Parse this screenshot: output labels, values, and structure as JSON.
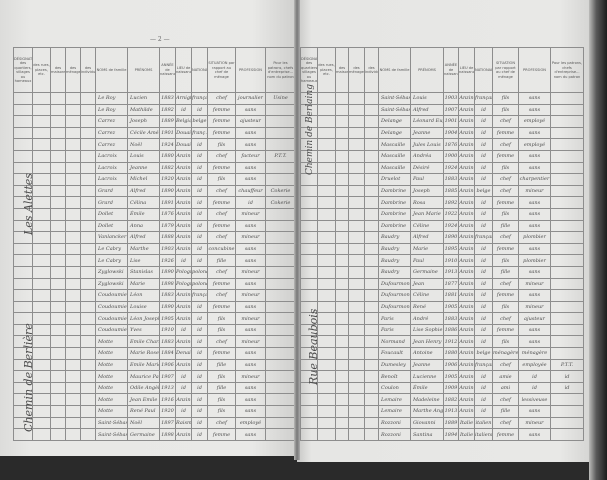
{
  "left_page": {
    "page_number": "— 2 —",
    "street_labels": [
      "Les Alettes",
      "Chemin de Berlière"
    ],
    "headers": [
      "DÉSIGNATION des quartiers, villages ou hameaux",
      "des rues, places, etc.",
      "des maisons",
      "des ménages",
      "des individus",
      "NOMS de famille",
      "PRÉNOMS",
      "ANNÉE de naissance",
      "LIEU de naissance",
      "NATIONALITÉ",
      "SITUATION par rapport au chef de ménage",
      "PROFESSION",
      "Pour les patrons, chefs d'entreprise... nom du patron"
    ],
    "rows": [
      [
        "Le Roy",
        "Lucien",
        "1883",
        "Arnigt",
        "français",
        "chef",
        "journalier",
        "Usine"
      ],
      [
        "Le Roy",
        "Mathilde",
        "1892",
        "id",
        "id",
        "femme",
        "sans",
        ""
      ],
      [
        "Carrez",
        "Joseph",
        "1889",
        "Belgique",
        "belge",
        "femme",
        "ajusteur",
        ""
      ],
      [
        "Carrez",
        "Cécile Amélie",
        "1901",
        "Douai",
        "franç.",
        "femme",
        "sans",
        ""
      ],
      [
        "Carrez",
        "Noël",
        "1924",
        "Douai",
        "id",
        "fils",
        "sans",
        ""
      ],
      [
        "Lacroix",
        "Louis",
        "1880",
        "Anzin",
        "id",
        "chef",
        "facteur",
        "P.T.T."
      ],
      [
        "Lacroix",
        "Jeanne",
        "1882",
        "Anzin",
        "id",
        "femme",
        "sans",
        ""
      ],
      [
        "Lacroix",
        "Michel",
        "1920",
        "Anzin",
        "id",
        "fils",
        "sans",
        ""
      ],
      [
        "Grard",
        "Alfred",
        "1890",
        "Anzin",
        "id",
        "chef",
        "chauffeur",
        "Cokerie"
      ],
      [
        "Grard",
        "Célina",
        "1891",
        "Anzin",
        "id",
        "femme",
        "id",
        "Cokerie"
      ],
      [
        "Dollet",
        "Émile",
        "1876",
        "Anzin",
        "id",
        "chef",
        "mineur",
        ""
      ],
      [
        "Dollet",
        "Anna",
        "1879",
        "Anzin",
        "id",
        "femme",
        "sans",
        ""
      ],
      [
        "Vanlancker",
        "Alfred",
        "1888",
        "Anzin",
        "id",
        "chef",
        "mineur",
        ""
      ],
      [
        "Le Cabry",
        "Marthe",
        "1903",
        "Anzin",
        "id",
        "concubine",
        "sans",
        ""
      ],
      [
        "Le Cabry",
        "Lise",
        "1926",
        "id",
        "id",
        "fille",
        "sans",
        ""
      ],
      [
        "Zyglowski",
        "Stanislas",
        "1890",
        "Pologne",
        "polonais",
        "chef",
        "mineur",
        ""
      ],
      [
        "Zyglowski",
        "Marie",
        "1898",
        "Pologne",
        "polonaise",
        "femme",
        "sans",
        ""
      ],
      [
        "Coudoumier",
        "Léon",
        "1883",
        "Anzin",
        "français",
        "chef",
        "mineur",
        ""
      ],
      [
        "Coudoumier",
        "Louise",
        "1890",
        "Anzin",
        "id",
        "femme",
        "sans",
        ""
      ],
      [
        "Coudoumier",
        "Léon Joseph",
        "1905",
        "Anzin",
        "id",
        "fils",
        "mineur",
        ""
      ],
      [
        "Coudoumier",
        "Yves",
        "1910",
        "id",
        "id",
        "fils",
        "sans",
        ""
      ],
      [
        "Motte",
        "Emile Charles",
        "1883",
        "Anzin",
        "id",
        "chef",
        "mineur",
        ""
      ],
      [
        "Motte",
        "Marie Rose",
        "1884",
        "Denain",
        "id",
        "femme",
        "sans",
        ""
      ],
      [
        "Motte",
        "Emile Marie",
        "1906",
        "Anzin",
        "id",
        "fille",
        "sans",
        ""
      ],
      [
        "Motte",
        "Maurice Paul",
        "1907",
        "id",
        "id",
        "fils",
        "mineur",
        ""
      ],
      [
        "Motte",
        "Odile Angèle",
        "1913",
        "id",
        "id",
        "fille",
        "sans",
        ""
      ],
      [
        "Motte",
        "Jean Emile",
        "1916",
        "Anzin",
        "id",
        "fils",
        "sans",
        ""
      ],
      [
        "Motte",
        "René Paul",
        "1920",
        "id",
        "id",
        "fils",
        "sans",
        ""
      ],
      [
        "Saint-Sébastien",
        "Noël",
        "1897",
        "Raismes",
        "id",
        "chef",
        "employé",
        ""
      ],
      [
        "Saint-Sébastien",
        "Germaine",
        "1898",
        "Anzin",
        "id",
        "femme",
        "sans",
        ""
      ]
    ]
  },
  "right_page": {
    "street_labels": [
      "Chemin de Berlaing",
      "Rue Beaubois"
    ],
    "headers": [
      "DÉSIGNATION des quartiers, villages ou hameaux",
      "des rues, places, etc.",
      "des maisons",
      "des ménages",
      "des individus",
      "NOMS de famille",
      "PRÉNOMS",
      "ANNÉE de naissance",
      "LIEU de naissance",
      "NATIONALITÉ",
      "SITUATION par rapport au chef de ménage",
      "PROFESSION",
      "Pour les patrons, chefs d'entreprise... nom du patron"
    ],
    "rows": [
      [
        "Saint-Sébastien",
        "Louis",
        "1903",
        "Anzin",
        "français",
        "fils",
        "sans",
        ""
      ],
      [
        "Saint-Sébastien",
        "Alfred",
        "1907",
        "Anzin",
        "id",
        "fils",
        "sans",
        ""
      ],
      [
        "Delange",
        "Léonard Eugène",
        "1901",
        "Anzin",
        "id",
        "chef",
        "employé",
        ""
      ],
      [
        "Delange",
        "Jeanne",
        "1904",
        "Anzin",
        "id",
        "femme",
        "sans",
        ""
      ],
      [
        "Mascaille",
        "Jules Louis",
        "1876",
        "Anzin",
        "id",
        "chef",
        "employé",
        ""
      ],
      [
        "Mascaille",
        "Andréa",
        "1900",
        "Anzin",
        "id",
        "femme",
        "sans",
        ""
      ],
      [
        "Mascaille",
        "Désiré",
        "1924",
        "Anzin",
        "id",
        "fils",
        "sans",
        ""
      ],
      [
        "Druelot",
        "Paul",
        "1883",
        "Anzin",
        "id",
        "chef",
        "charpentier",
        ""
      ],
      [
        "Dambrine",
        "Joseph",
        "1885",
        "Anzin",
        "belge",
        "chef",
        "mineur",
        ""
      ],
      [
        "Dambrine",
        "Rosa",
        "1892",
        "Anzin",
        "id",
        "femme",
        "sans",
        ""
      ],
      [
        "Dambrine",
        "Jean Marie",
        "1922",
        "Anzin",
        "id",
        "fils",
        "sans",
        ""
      ],
      [
        "Dambrine",
        "Céline",
        "1924",
        "Anzin",
        "id",
        "fille",
        "sans",
        ""
      ],
      [
        "Baudry",
        "Alfred",
        "1890",
        "Anzin",
        "français",
        "chef",
        "plombier",
        ""
      ],
      [
        "Baudry",
        "Marie",
        "1895",
        "Anzin",
        "id",
        "femme",
        "sans",
        ""
      ],
      [
        "Baudry",
        "Paul",
        "1910",
        "Anzin",
        "id",
        "fils",
        "plombier",
        ""
      ],
      [
        "Baudry",
        "Germaine",
        "1913",
        "Anzin",
        "id",
        "fille",
        "sans",
        ""
      ],
      [
        "Dufourmon",
        "Jean",
        "1877",
        "Anzin",
        "id",
        "chef",
        "mineur",
        ""
      ],
      [
        "Dufourmon",
        "Céline",
        "1881",
        "Anzin",
        "id",
        "femme",
        "sans",
        ""
      ],
      [
        "Dufourmon",
        "René",
        "1905",
        "Anzin",
        "id",
        "fils",
        "mineur",
        ""
      ],
      [
        "Paris",
        "André",
        "1883",
        "Anzin",
        "id",
        "chef",
        "ajusteur",
        ""
      ],
      [
        "Paris",
        "Lise Sophie",
        "1886",
        "Anzin",
        "id",
        "femme",
        "sans",
        ""
      ],
      [
        "Normand",
        "Jean Henry",
        "1912",
        "Anzin",
        "id",
        "fils",
        "sans",
        ""
      ],
      [
        "Foucault",
        "Antoine",
        "1880",
        "Anzin",
        "belge",
        "ménagère",
        "ménagère",
        ""
      ],
      [
        "Dumesley",
        "Jeanne",
        "1906",
        "Anzin",
        "français",
        "chef",
        "employée",
        "P.T.T."
      ],
      [
        "Benoît",
        "Lucienne",
        "1905",
        "Anzin",
        "id",
        "amie",
        "id",
        "id"
      ],
      [
        "Coulon",
        "Émile",
        "1909",
        "Anzin",
        "id",
        "ami",
        "id",
        "id"
      ],
      [
        "Lemaire",
        "Madeleine",
        "1882",
        "Anzin",
        "id",
        "chef",
        "lessiveuse",
        ""
      ],
      [
        "Lemaire",
        "Marthe Angèle",
        "1913",
        "Anzin",
        "id",
        "fille",
        "sans",
        ""
      ],
      [
        "Rozzoni",
        "Giovanni",
        "1889",
        "Italie",
        "italien",
        "chef",
        "mineur",
        ""
      ],
      [
        "Rozzoni",
        "Santina",
        "1894",
        "Italie",
        "italienne",
        "femme",
        "sans",
        ""
      ]
    ]
  }
}
